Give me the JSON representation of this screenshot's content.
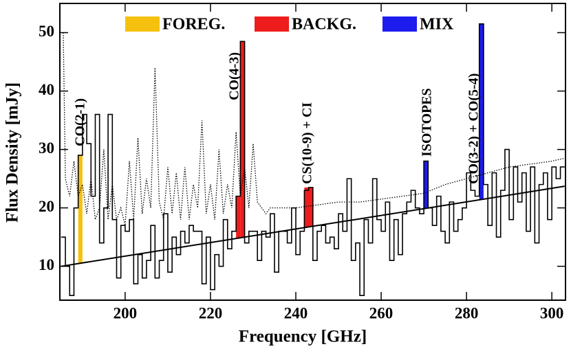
{
  "chart_data": {
    "type": "step",
    "xlabel": "Frequency [GHz]",
    "ylabel": "Flux Density [mJy]",
    "xlim": [
      184.7,
      303.2
    ],
    "ylim": [
      4.2,
      55
    ],
    "xticks": [
      200,
      220,
      240,
      260,
      280,
      300
    ],
    "yticks": [
      10,
      20,
      30,
      40,
      50
    ],
    "spectrum": {
      "color": "#000000",
      "bins": [
        185,
        186,
        187,
        188,
        189,
        190,
        191,
        192,
        193,
        194,
        195,
        196,
        197,
        198,
        199,
        200,
        201,
        202,
        203,
        204,
        205,
        206,
        207,
        208,
        209,
        210,
        211,
        212,
        213,
        214,
        215,
        216,
        217,
        218,
        219,
        220,
        221,
        222,
        223,
        224,
        225,
        226,
        227,
        228,
        229,
        230,
        231,
        232,
        233,
        234,
        235,
        236,
        237,
        238,
        239,
        240,
        241,
        242,
        243,
        244,
        245,
        246,
        247,
        248,
        249,
        250,
        251,
        252,
        253,
        254,
        255,
        256,
        257,
        258,
        259,
        260,
        261,
        262,
        263,
        264,
        265,
        266,
        267,
        268,
        269,
        270,
        271,
        272,
        273,
        274,
        275,
        276,
        277,
        278,
        279,
        280,
        281,
        282,
        283,
        284,
        285,
        286,
        287,
        288,
        289,
        290,
        291,
        292,
        293,
        294,
        295,
        296,
        297,
        298,
        299,
        300,
        301,
        302,
        303
      ],
      "values": [
        15,
        10,
        5,
        20,
        29,
        36,
        31,
        22,
        36,
        14,
        20,
        36,
        18,
        8,
        17,
        16,
        18,
        7,
        12,
        8,
        11,
        17,
        8,
        11,
        19,
        9,
        15,
        12,
        16,
        14,
        17,
        16,
        16,
        7,
        15,
        6,
        12,
        10,
        18,
        13,
        16,
        22,
        48.5,
        14,
        16,
        16,
        11,
        16,
        15,
        19,
        9,
        16,
        16,
        14,
        20,
        12,
        16,
        23,
        23.5,
        11,
        16,
        17,
        14,
        15,
        13,
        19,
        16,
        25,
        11,
        14,
        5,
        18,
        14,
        25,
        18,
        16,
        21,
        11,
        18,
        12,
        19,
        21,
        23,
        20,
        19,
        28,
        20,
        17,
        22,
        16,
        14,
        21,
        16,
        18,
        20,
        26,
        23,
        22,
        51.5,
        24,
        17,
        26,
        15,
        23,
        30,
        18,
        27,
        21,
        26,
        16,
        27,
        14,
        24,
        26,
        18,
        27,
        25,
        27
      ]
    },
    "noise": {
      "color": "#000000",
      "x": [
        185.5,
        186,
        187,
        188,
        189,
        190,
        191,
        192,
        193,
        194,
        195,
        196,
        197,
        198,
        199,
        200,
        201,
        202,
        203,
        204,
        205,
        206,
        207,
        208,
        209,
        210,
        211,
        212,
        213,
        214,
        215,
        216,
        217,
        218,
        219,
        220,
        221,
        222,
        223,
        224,
        225,
        226,
        227,
        228,
        229,
        230,
        231,
        232,
        233,
        234,
        236,
        240,
        245,
        250,
        255,
        260,
        265,
        270,
        275,
        280,
        285,
        290,
        295,
        300,
        303
      ],
      "values": [
        50,
        25,
        22,
        28,
        22,
        24,
        19,
        25,
        18,
        20,
        30,
        18,
        24,
        18,
        20,
        17,
        28,
        18,
        32,
        19,
        25,
        20,
        44,
        21,
        18,
        27,
        19,
        26,
        18,
        27,
        18,
        24,
        20,
        35,
        19,
        24,
        18,
        30,
        19,
        24,
        20,
        33,
        22,
        27,
        20,
        31,
        21,
        20,
        19,
        20,
        20,
        20,
        20.5,
        21,
        21,
        21.5,
        22,
        22.5,
        24,
        25,
        26,
        27,
        27.5,
        28,
        28.5
      ]
    },
    "continuum": {
      "color": "#000000",
      "x": [
        185,
        303
      ],
      "values": [
        10,
        23.7
      ]
    },
    "highlights": [
      {
        "name": "FOREG.",
        "color": "#f5c10e",
        "segments": [
          {
            "label": "CO(2-1)",
            "x": [
              189,
              190
            ],
            "value": 29
          }
        ]
      },
      {
        "name": "BACKG.",
        "color": "#ee1c1c",
        "segments": [
          {
            "x": [
              226,
              227
            ],
            "value": 22
          },
          {
            "label": "CO(4-3)",
            "x": [
              227,
              228
            ],
            "value": 48.5
          },
          {
            "label": "CS(10-9) + CI",
            "x": [
              242,
              244
            ],
            "value": 23.5
          }
        ]
      },
      {
        "name": "MIX",
        "color": "#1c1cee",
        "segments": [
          {
            "label": "ISOTOPES",
            "x": [
              270,
              271
            ],
            "value": 28
          },
          {
            "label": "CO(3-2) + CO(5-4)",
            "x": [
              283,
              284
            ],
            "value": 51.5
          }
        ]
      }
    ]
  }
}
